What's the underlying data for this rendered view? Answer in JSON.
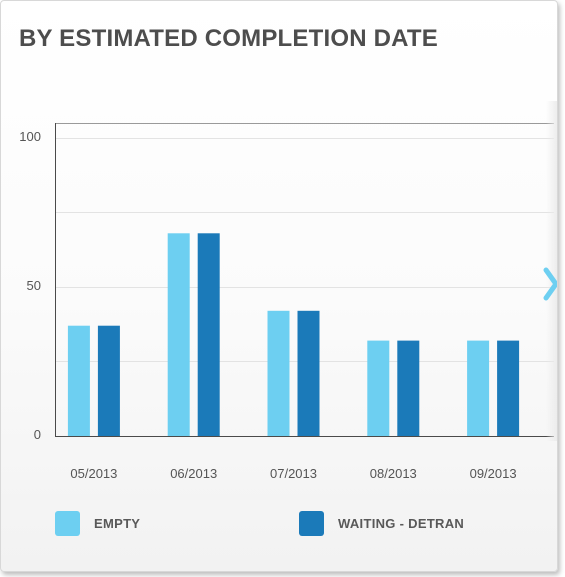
{
  "title": "BY ESTIMATED COMPLETION DATE",
  "colors": {
    "empty": "#6dcff1",
    "waiting": "#1b7ab9",
    "grid": "#e3e3e3",
    "axis": "#4a4a4a",
    "arrow": "#6dcff1"
  },
  "nav": {
    "next_icon": "chevron-right-icon"
  },
  "chart_data": {
    "type": "bar",
    "categories": [
      "05/2013",
      "06/2013",
      "07/2013",
      "08/2013",
      "09/2013"
    ],
    "series": [
      {
        "name": "EMPTY",
        "values": [
          37,
          68,
          42,
          32,
          32
        ]
      },
      {
        "name": "WAITING - DETRAN",
        "values": [
          37,
          68,
          42,
          32,
          32
        ]
      }
    ],
    "ylim": [
      0,
      105
    ],
    "yticks": [
      0,
      50,
      100
    ],
    "grid_lines": [
      0,
      25,
      50,
      75,
      100
    ],
    "grid": true,
    "legend_position": "bottom"
  },
  "legend": [
    {
      "label": "EMPTY"
    },
    {
      "label": "WAITING - DETRAN"
    }
  ]
}
